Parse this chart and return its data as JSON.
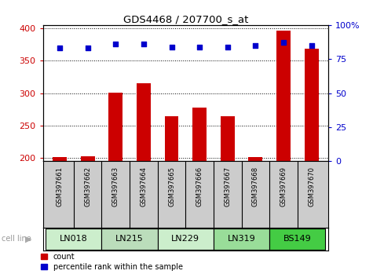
{
  "title": "GDS4468 / 207700_s_at",
  "samples": [
    "GSM397661",
    "GSM397662",
    "GSM397663",
    "GSM397664",
    "GSM397665",
    "GSM397666",
    "GSM397667",
    "GSM397668",
    "GSM397669",
    "GSM397670"
  ],
  "counts": [
    201,
    203,
    301,
    315,
    265,
    278,
    264,
    201,
    396,
    368
  ],
  "percentile_ranks": [
    83,
    83,
    86,
    86,
    84,
    84,
    84,
    85,
    87,
    85
  ],
  "ylim_left": [
    195,
    405
  ],
  "ylim_right": [
    0,
    100
  ],
  "yticks_left": [
    200,
    250,
    300,
    350,
    400
  ],
  "yticks_right": [
    0,
    25,
    50,
    75,
    100
  ],
  "cell_lines": [
    {
      "name": "LN018",
      "samples": [
        0,
        1
      ],
      "color": "#cceecc"
    },
    {
      "name": "LN215",
      "samples": [
        2,
        3
      ],
      "color": "#bbddbb"
    },
    {
      "name": "LN229",
      "samples": [
        4,
        5
      ],
      "color": "#cceecc"
    },
    {
      "name": "LN319",
      "samples": [
        6,
        7
      ],
      "color": "#99dd99"
    },
    {
      "name": "BS149",
      "samples": [
        8,
        9
      ],
      "color": "#44cc44"
    }
  ],
  "bar_color": "#cc0000",
  "dot_color": "#0000cc",
  "bar_width": 0.5,
  "gsm_bg_color": "#cccccc",
  "bg_color": "#ffffff",
  "left_label_color": "#cc0000",
  "right_label_color": "#0000cc",
  "legend_count_color": "#cc0000",
  "legend_pct_color": "#0000cc",
  "cell_line_label": "cell line",
  "cell_line_label_color": "#999999"
}
